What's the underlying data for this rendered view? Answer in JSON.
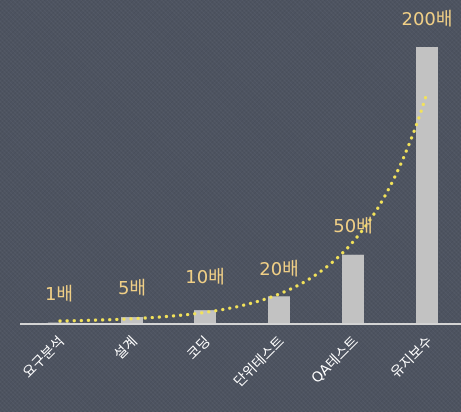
{
  "chart_data": {
    "type": "bar",
    "title": "",
    "xlabel": "",
    "ylabel": "",
    "categories": [
      "요구분석",
      "설계",
      "코딩",
      "단위테스트",
      "QA테스트",
      "유지보수"
    ],
    "values": [
      1,
      5,
      10,
      20,
      50,
      200
    ],
    "data_labels": [
      "1배",
      "5배",
      "10배",
      "20배",
      "50배",
      "200배"
    ],
    "ylim": [
      0,
      200
    ],
    "grid": false,
    "legend": "none",
    "trend_line": "dotted exponential curve",
    "colors": {
      "background": "#4d5360",
      "bar": "#c2c2c2",
      "label": "#f0cf86",
      "tick": "#ffffff",
      "trend": "#f2e25a",
      "baseline": "#d4d4d4"
    }
  }
}
